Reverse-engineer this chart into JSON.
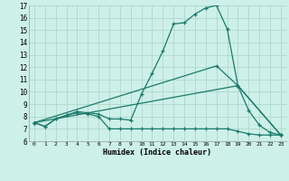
{
  "xlabel": "Humidex (Indice chaleur)",
  "background_color": "#cdf0e8",
  "grid_color": "#b0d8cc",
  "line_color": "#1a7a6a",
  "xlim": [
    -0.5,
    23.5
  ],
  "ylim": [
    6,
    17
  ],
  "yticks": [
    6,
    7,
    8,
    9,
    10,
    11,
    12,
    13,
    14,
    15,
    16,
    17
  ],
  "xticks": [
    0,
    1,
    2,
    3,
    4,
    5,
    6,
    7,
    8,
    9,
    10,
    11,
    12,
    13,
    14,
    15,
    16,
    17,
    18,
    19,
    20,
    21,
    22,
    23
  ],
  "series": [
    {
      "x": [
        0,
        1,
        2,
        3,
        4,
        5,
        6,
        7,
        8,
        9,
        10,
        11,
        12,
        13,
        14,
        15,
        16,
        17,
        18,
        19,
        20,
        21,
        22,
        23
      ],
      "y": [
        7.5,
        7.2,
        7.8,
        8.1,
        8.4,
        8.3,
        8.2,
        7.8,
        7.8,
        7.7,
        9.8,
        11.5,
        13.3,
        15.5,
        15.6,
        16.3,
        16.8,
        17.0,
        15.1,
        10.5,
        8.5,
        7.3,
        6.7,
        6.5
      ]
    },
    {
      "x": [
        0,
        1,
        2,
        3,
        4,
        5,
        6,
        7,
        8,
        9,
        10,
        11,
        12,
        13,
        14,
        15,
        16,
        17,
        18,
        19,
        20,
        21,
        22,
        23
      ],
      "y": [
        7.5,
        7.2,
        7.8,
        8.1,
        8.3,
        8.2,
        8.0,
        7.0,
        7.0,
        7.0,
        7.0,
        7.0,
        7.0,
        7.0,
        7.0,
        7.0,
        7.0,
        7.0,
        7.0,
        6.8,
        6.6,
        6.5,
        6.5,
        6.5
      ]
    },
    {
      "x": [
        0,
        17,
        19,
        23
      ],
      "y": [
        7.5,
        12.1,
        10.5,
        6.5
      ]
    },
    {
      "x": [
        0,
        19,
        23
      ],
      "y": [
        7.5,
        10.5,
        6.5
      ]
    }
  ]
}
